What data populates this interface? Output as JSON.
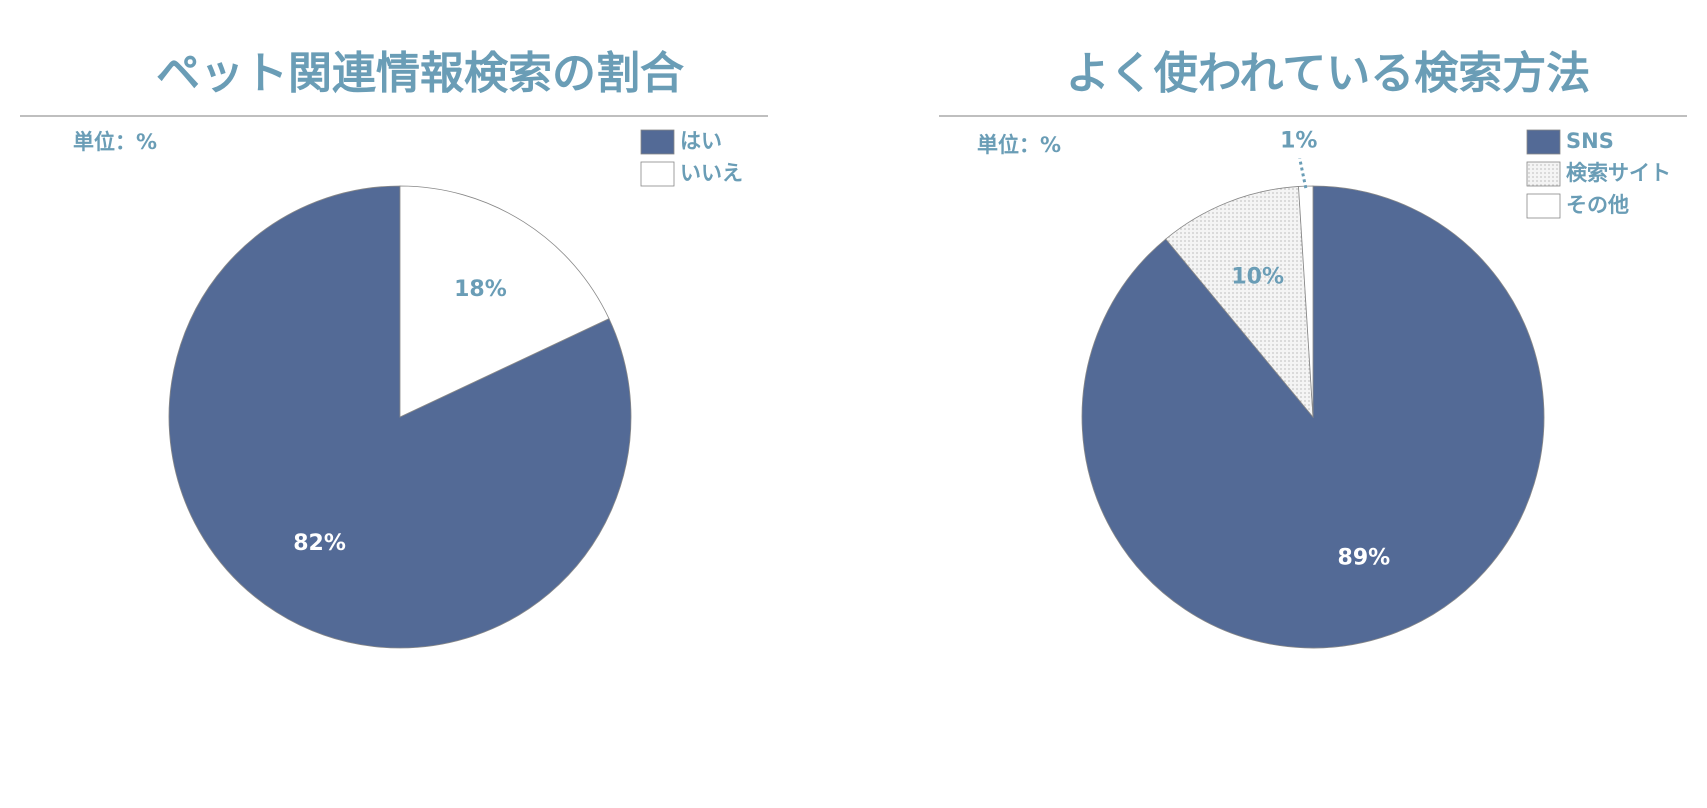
{
  "chart_data": [
    {
      "type": "pie",
      "title": "ペット関連情報検索の割合",
      "unit_label": "単位：%",
      "categories": [
        "はい",
        "いいえ"
      ],
      "values": [
        82,
        18
      ],
      "value_labels": [
        "82%",
        "18%"
      ],
      "colors": [
        "#536a96",
        "#ffffff"
      ],
      "patterns": [
        null,
        null
      ],
      "direction": "counterclockwise"
    },
    {
      "type": "pie",
      "title": "よく使われている検索方法",
      "unit_label": "単位：%",
      "categories": [
        "SNS",
        "検索サイト",
        "その他"
      ],
      "values": [
        89,
        10,
        1
      ],
      "value_labels": [
        "89%",
        "10%",
        "1%"
      ],
      "colors": [
        "#536a96",
        "#f4f4f4",
        "#ffffff"
      ],
      "patterns": [
        null,
        "dots",
        null
      ],
      "direction": "clockwise"
    }
  ]
}
